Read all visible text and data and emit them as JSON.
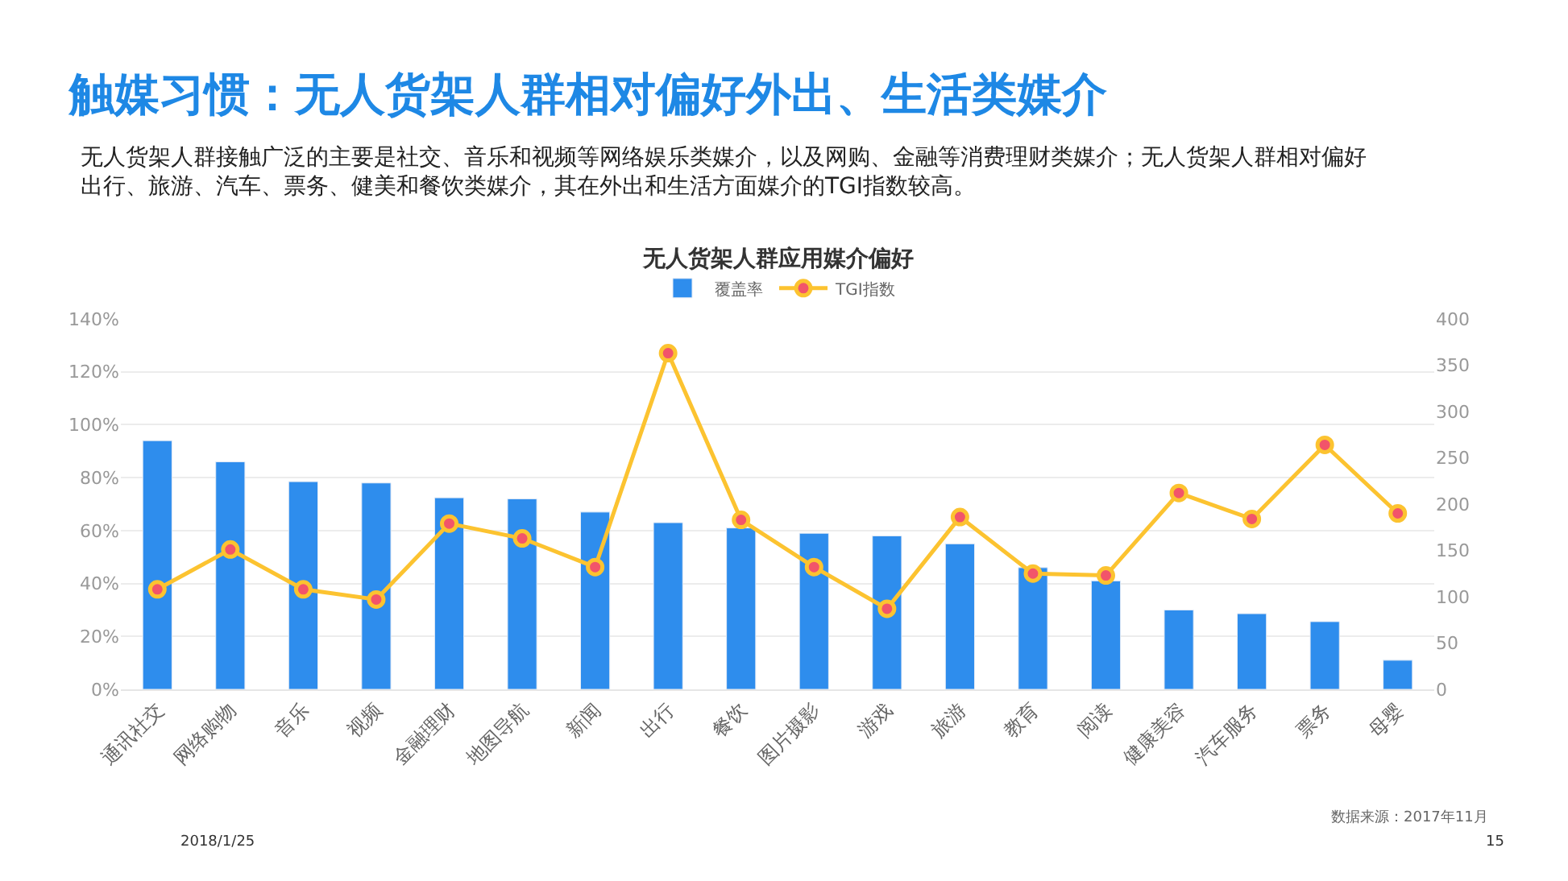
{
  "chart_data": {
    "type": "bar",
    "title": "无人货架人群应用媒介偏好",
    "categories": [
      "通讯社交",
      "网络购物",
      "音乐",
      "视频",
      "金融理财",
      "地图导航",
      "新闻",
      "出行",
      "餐饮",
      "图片摄影",
      "游戏",
      "旅游",
      "教育",
      "阅读",
      "健康美容",
      "汽车服务",
      "票务",
      "母婴"
    ],
    "series": [
      {
        "name": "覆盖率",
        "color": "#2e8ded",
        "values": [
          94,
          86,
          78.5,
          78,
          72.4,
          72,
          67,
          63,
          61,
          59,
          58,
          55,
          46,
          41,
          30,
          28.6,
          25.6,
          11
        ]
      },
      {
        "name": "TGI指数",
        "type": "line",
        "axis": "y2",
        "color": "#fcc330",
        "marker": "circle",
        "line_style": "solid",
        "values": [
          108,
          151,
          108,
          97,
          179,
          163,
          132,
          363,
          183,
          132,
          87,
          186,
          125,
          123,
          212,
          184,
          264,
          190
        ]
      }
    ],
    "ylim": [
      0,
      140
    ],
    "yticks": [
      {
        "value": 0,
        "label": "0%"
      },
      {
        "value": 20,
        "label": "20%"
      },
      {
        "value": 40,
        "label": "40%"
      },
      {
        "value": 60,
        "label": "60%"
      },
      {
        "value": 80,
        "label": "80%"
      },
      {
        "value": 100,
        "label": "100%"
      },
      {
        "value": 120,
        "label": "120%"
      },
      {
        "value": 140,
        "label": "140%"
      }
    ],
    "y2lim": [
      0,
      400
    ],
    "y2ticks": [
      0,
      50,
      100,
      150,
      200,
      250,
      300,
      350,
      400
    ],
    "grid": "y",
    "legend": "top",
    "annotations": [
      "触媒习惯：无人货架人群相对偏好外出、生活类媒介",
      "无人货架人群接触广泛的主要是社交、音乐和视频等网络娱乐类媒介，以及网购、金融等消费理财类媒介；无人货架人群相对偏好出行、旅游、汽车、票务、健美和餐饮类媒介，其在外出和生活方面媒介的TGI指数较高。",
      "数据来源：2017年11月",
      "2018/1/25",
      "15"
    ]
  }
}
